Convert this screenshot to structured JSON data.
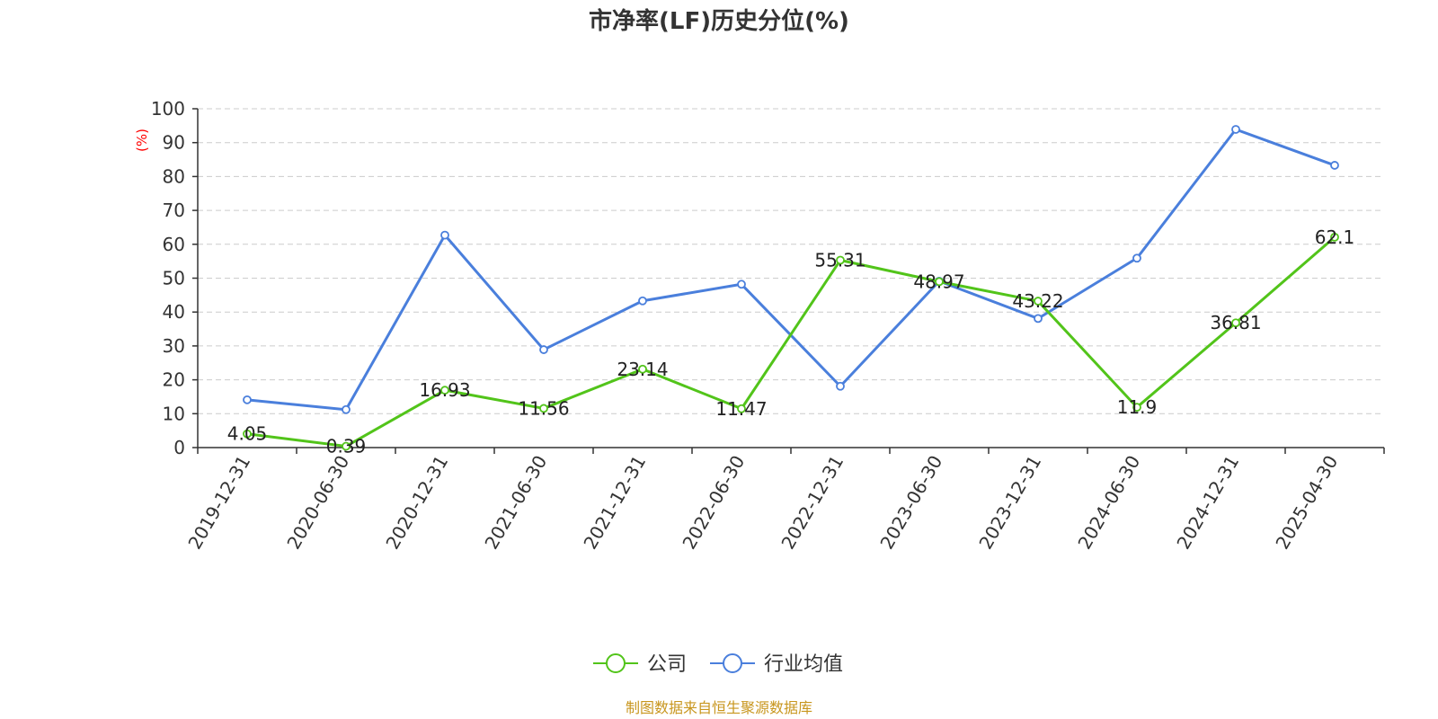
{
  "chart_data": {
    "type": "line",
    "title": "市净率(LF)历史分位(%)",
    "ylabel": "(%)",
    "ylim": [
      0,
      100
    ],
    "yticks": [
      0,
      10,
      20,
      30,
      40,
      50,
      60,
      70,
      80,
      90,
      100
    ],
    "categories": [
      "2019-12-31",
      "2020-06-30",
      "2020-12-31",
      "2021-06-30",
      "2021-12-31",
      "2022-06-30",
      "2022-12-31",
      "2023-06-30",
      "2023-12-31",
      "2024-06-30",
      "2024-12-31",
      "2025-04-30"
    ],
    "grid": "horizontal-dashed",
    "legend_position": "bottom-center",
    "series": [
      {
        "name": "公司",
        "color": "#52c41a",
        "values": [
          4.05,
          0.39,
          16.93,
          11.56,
          23.14,
          11.47,
          55.31,
          48.97,
          43.22,
          11.9,
          36.81,
          62.1
        ],
        "data_labels": [
          "4.05",
          "0.39",
          "16.93",
          "11.56",
          "23.14",
          "11.47",
          "55.31",
          "48.97",
          "43.22",
          "11.9",
          "36.81",
          "62.1"
        ]
      },
      {
        "name": "行业均值",
        "color": "#4a7fdc",
        "values": [
          14.1,
          11.2,
          62.7,
          28.9,
          43.3,
          48.2,
          18.1,
          49.1,
          38.1,
          55.9,
          93.9,
          83.3
        ]
      }
    ],
    "source": "制图数据来自恒生聚源数据库"
  }
}
